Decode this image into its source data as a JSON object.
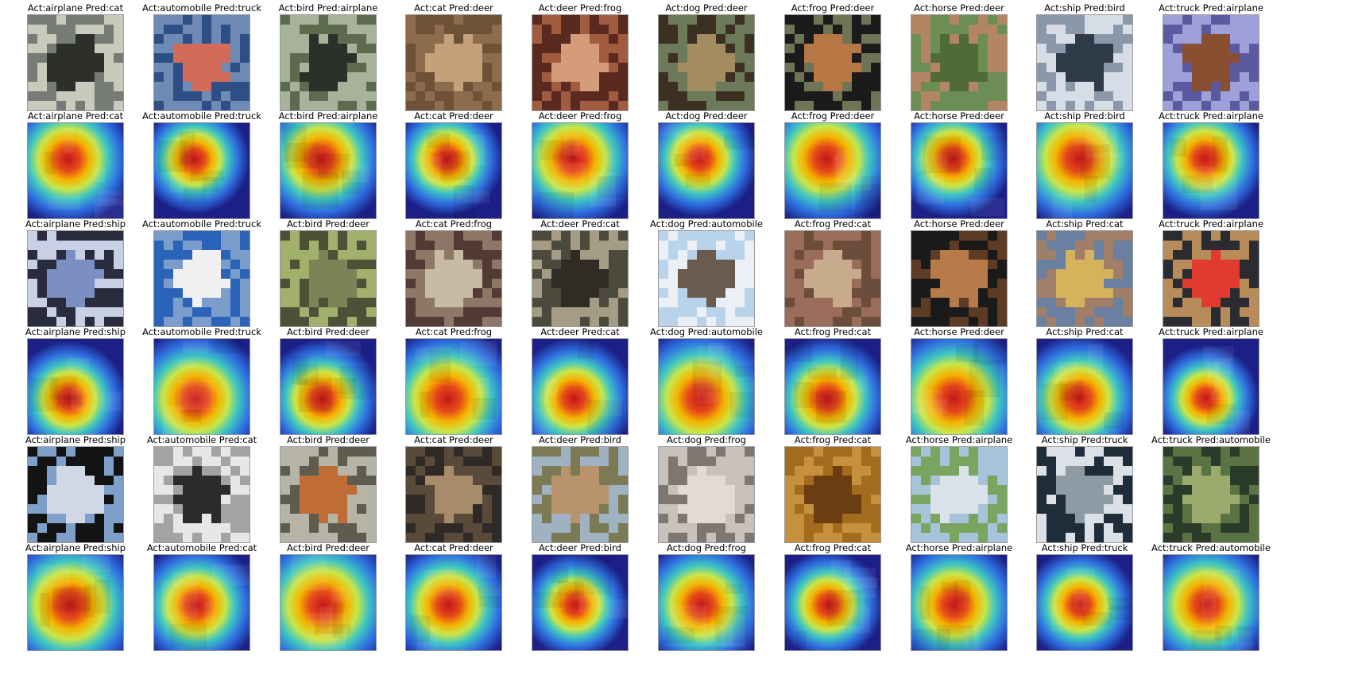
{
  "figure": {
    "background": "#ffffff",
    "panel_rows": [
      {
        "kind": "image",
        "captions": [
          "Act:airplane  Pred:cat",
          "Act:automobile  Pred:truck",
          "Act:bird  Pred:airplane",
          "Act:cat  Pred:deer",
          "Act:deer  Pred:frog",
          "Act:dog  Pred:deer",
          "Act:frog  Pred:deer",
          "Act:horse  Pred:deer",
          "Act:ship  Pred:bird",
          "Act:truck  Pred:airplane"
        ]
      },
      {
        "kind": "heatmap",
        "captions": [
          "Act:airplane  Pred:cat",
          "Act:automobile  Pred:truck",
          "Act:bird  Pred:airplane",
          "Act:cat  Pred:deer",
          "Act:deer  Pred:frog",
          "Act:dog  Pred:deer",
          "Act:frog  Pred:deer",
          "Act:horse  Pred:deer",
          "Act:ship  Pred:bird",
          "Act:truck  Pred:airplane"
        ]
      },
      {
        "kind": "image",
        "captions": [
          "Act:airplane  Pred:ship",
          "Act:automobile  Pred:truck",
          "Act:bird  Pred:deer",
          "Act:cat  Pred:frog",
          "Act:deer  Pred:cat",
          "Act:dog  Pred:automobile",
          "Act:frog  Pred:cat",
          "Act:horse  Pred:deer",
          "Act:ship  Pred:cat",
          "Act:truck  Pred:airplane"
        ]
      },
      {
        "kind": "heatmap",
        "captions": [
          "Act:airplane  Pred:ship",
          "Act:automobile  Pred:truck",
          "Act:bird  Pred:deer",
          "Act:cat  Pred:frog",
          "Act:deer  Pred:cat",
          "Act:dog  Pred:automobile",
          "Act:frog  Pred:cat",
          "Act:horse  Pred:deer",
          "Act:ship  Pred:cat",
          "Act:truck  Pred:airplane"
        ]
      },
      {
        "kind": "image",
        "captions": [
          "Act:airplane  Pred:ship",
          "Act:automobile  Pred:cat",
          "Act:bird  Pred:deer",
          "Act:cat  Pred:deer",
          "Act:deer  Pred:bird",
          "Act:dog  Pred:frog",
          "Act:frog  Pred:cat",
          "Act:horse  Pred:airplane",
          "Act:ship  Pred:truck",
          "Act:truck  Pred:automobile"
        ]
      },
      {
        "kind": "heatmap",
        "captions": [
          "Act:airplane  Pred:ship",
          "Act:automobile  Pred:cat",
          "Act:bird  Pred:deer",
          "Act:cat  Pred:deer",
          "Act:deer  Pred:bird",
          "Act:dog  Pred:frog",
          "Act:frog  Pred:cat",
          "Act:horse  Pred:airplane",
          "Act:ship  Pred:truck",
          "Act:truck  Pred:automobile"
        ]
      }
    ],
    "thumbnail_palettes": [
      [
        "#c9cabc",
        "#777b76",
        "#2c2f2a"
      ],
      [
        "#6f8ab4",
        "#2e4f86",
        "#d26b58"
      ],
      [
        "#a8b29a",
        "#5e6a4e",
        "#2c302a"
      ],
      [
        "#8d6b4d",
        "#6e5237",
        "#c4a17a"
      ],
      [
        "#5a2a21",
        "#a15b3f",
        "#d49c78"
      ],
      [
        "#6d7a5a",
        "#3c3022",
        "#a28c60"
      ],
      [
        "#1b1b1b",
        "#6f7554",
        "#b77745"
      ],
      [
        "#6d8d57",
        "#b48563",
        "#4f6b38"
      ],
      [
        "#d7dde6",
        "#8a98a9",
        "#2f3a48"
      ],
      [
        "#9ea0d9",
        "#5b5aa1",
        "#8a4e31"
      ],
      [
        "#2a2c3e",
        "#c8d0e6",
        "#7b8fc3"
      ],
      [
        "#7a9dcb",
        "#2b63b8",
        "#f0f0f0"
      ],
      [
        "#4e5138",
        "#a1b06a",
        "#7d8257"
      ],
      [
        "#523a35",
        "#8e7766",
        "#c7bca3"
      ],
      [
        "#4c4a3c",
        "#a49c84",
        "#2e2c24"
      ],
      [
        "#b9d3ea",
        "#eaf0f5",
        "#6b5b4f"
      ],
      [
        "#6c4d3b",
        "#9a6d5b",
        "#c8aa8c"
      ],
      [
        "#1a1a1a",
        "#5e3b24",
        "#b77a49"
      ],
      [
        "#a17e67",
        "#6a80a1",
        "#d4b35c"
      ],
      [
        "#b88c5a",
        "#2a2c31",
        "#e13a2e"
      ],
      [
        "#131313",
        "#7d9fc9",
        "#cfd8e4"
      ],
      [
        "#e7e7e7",
        "#a3a3a3",
        "#2b2b2b"
      ],
      [
        "#b6b4a7",
        "#5f5b4f",
        "#c06c35"
      ],
      [
        "#5a4a3a",
        "#2f2a26",
        "#a88b6a"
      ],
      [
        "#9fb2c2",
        "#7c7a54",
        "#b9936b"
      ],
      [
        "#c8c2ba",
        "#7f7670",
        "#e1dbd3"
      ],
      [
        "#a26b1e",
        "#c6913d",
        "#6a3e12"
      ],
      [
        "#a7c3d9",
        "#7aa45f",
        "#d9e3e9"
      ],
      [
        "#1f2d3a",
        "#dbe1e6",
        "#8e9aa4"
      ],
      [
        "#5a7342",
        "#2b3b2a",
        "#9caa6d"
      ]
    ]
  }
}
